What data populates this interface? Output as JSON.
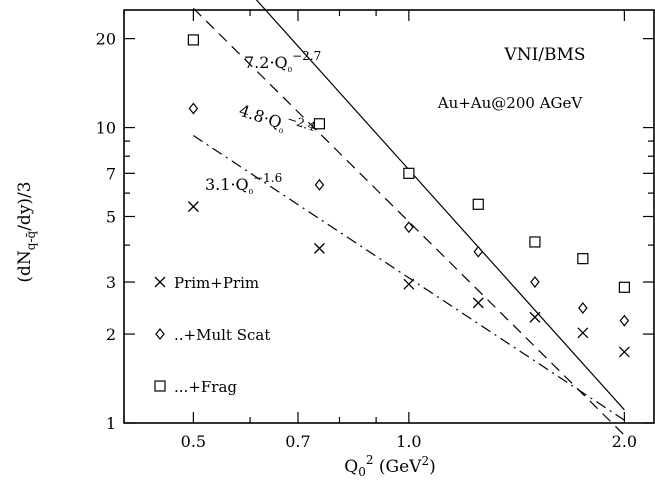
{
  "chart_data": {
    "type": "scatter",
    "xscale": "log",
    "yscale": "log",
    "xlim": [
      0.4,
      2.2
    ],
    "ylim": [
      1,
      25
    ],
    "xlabel": "Q₀² (GeV²)",
    "ylabel": "(dN_{q-q̄}/dy)/3",
    "xticks": [
      {
        "value": 0.5,
        "label": "0.5"
      },
      {
        "value": 0.7,
        "label": "0.7"
      },
      {
        "value": 1.0,
        "label": "1.0"
      },
      {
        "value": 2.0,
        "label": "2.0"
      }
    ],
    "yticks": [
      {
        "value": 1,
        "label": "1"
      },
      {
        "value": 2,
        "label": "2"
      },
      {
        "value": 3,
        "label": "3"
      },
      {
        "value": 5,
        "label": "5"
      },
      {
        "value": 7,
        "label": "7"
      },
      {
        "value": 10,
        "label": "10"
      },
      {
        "value": 20,
        "label": "20"
      }
    ],
    "series": [
      {
        "name": "Prim+Prim",
        "marker": "cross",
        "x": [
          0.5,
          0.75,
          1.0,
          1.25,
          1.5,
          1.75,
          2.0
        ],
        "y": [
          5.4,
          3.9,
          2.95,
          2.55,
          2.28,
          2.02,
          1.74
        ],
        "fit": {
          "label": "3.1·Q₀",
          "exp": "−1.6",
          "a": 3.1,
          "p": -1.6,
          "dash": "dashdot"
        }
      },
      {
        "name": "..+Mult Scat",
        "marker": "diamond",
        "x": [
          0.5,
          0.75,
          1.0,
          1.25,
          1.5,
          1.75,
          2.0
        ],
        "y": [
          11.6,
          6.4,
          4.6,
          3.8,
          3.0,
          2.45,
          2.22
        ],
        "fit": {
          "label": "4.8·Q₀",
          "exp": "−2.4",
          "a": 4.8,
          "p": -2.4,
          "dash": "dashed"
        }
      },
      {
        "name": "...+Frag",
        "marker": "square",
        "x": [
          0.5,
          0.75,
          1.0,
          1.25,
          1.5,
          1.75,
          2.0
        ],
        "y": [
          19.8,
          10.3,
          7.0,
          5.5,
          4.1,
          3.6,
          2.88
        ],
        "fit": {
          "label": "7.2·Q₀",
          "exp": "−2.7",
          "a": 7.2,
          "p": -2.7,
          "dash": "solid"
        }
      }
    ],
    "annotations": [
      "VNI/BMS",
      "Au+Au@200 AGeV"
    ],
    "legend_position": "bottom-left"
  }
}
